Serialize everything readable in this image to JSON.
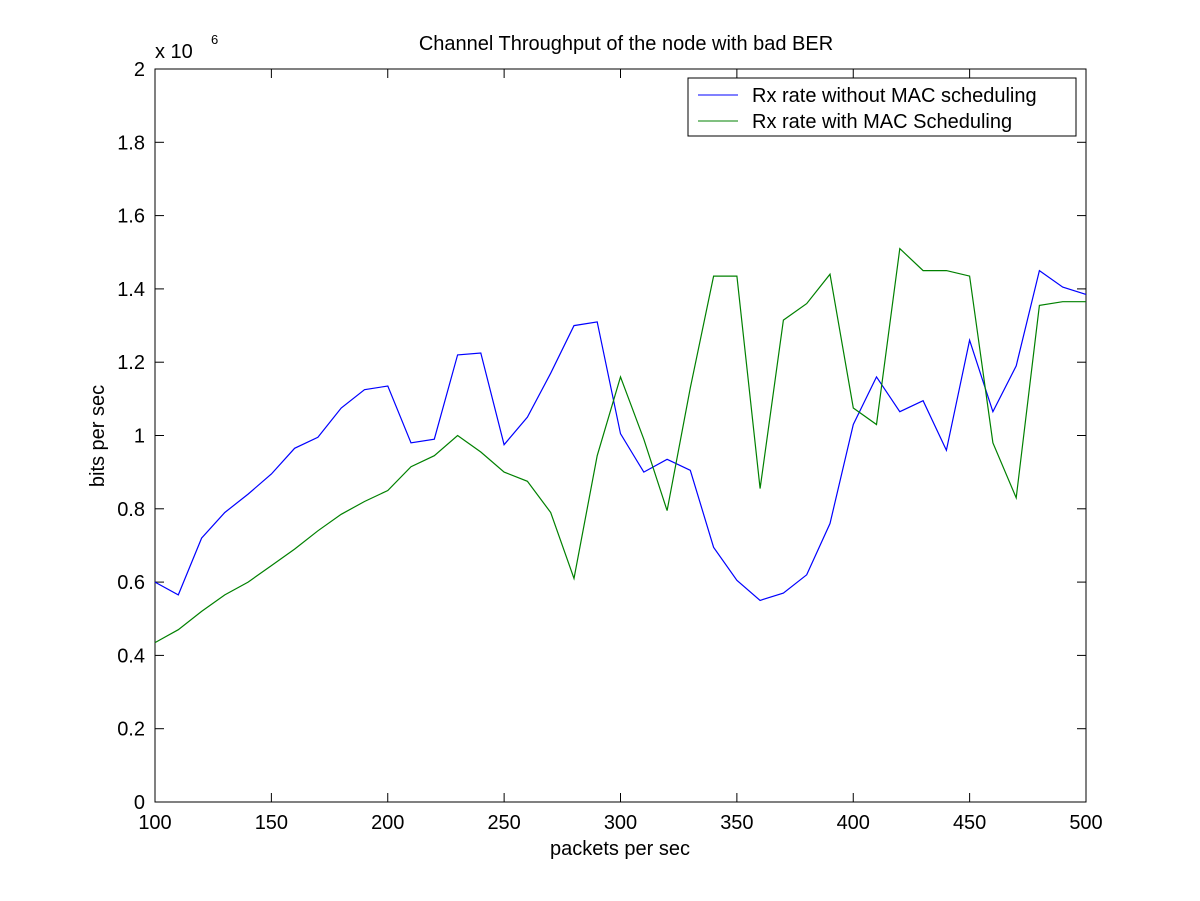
{
  "chart_data": {
    "type": "line",
    "title": "Channel Throughput of the node with bad BER",
    "xlabel": "packets per sec",
    "ylabel": "bits per sec",
    "y_multiplier": {
      "base": "x 10",
      "exponent": "6"
    },
    "xlim": [
      100,
      500
    ],
    "ylim": [
      0,
      2
    ],
    "xticks": [
      100,
      150,
      200,
      250,
      300,
      350,
      400,
      450,
      500
    ],
    "xtick_labels": [
      "100",
      "150",
      "200",
      "250",
      "300",
      "350",
      "400",
      "450",
      "500"
    ],
    "yticks": [
      0,
      0.2,
      0.4,
      0.6,
      0.8,
      1,
      1.2,
      1.4,
      1.6,
      1.8,
      2
    ],
    "ytick_labels": [
      "0",
      "0.2",
      "0.4",
      "0.6",
      "0.8",
      "1",
      "1.2",
      "1.4",
      "1.6",
      "1.8",
      "2"
    ],
    "grid": false,
    "legend_position": "top-right",
    "x": [
      100,
      110,
      120,
      130,
      140,
      150,
      160,
      170,
      180,
      190,
      200,
      210,
      220,
      230,
      240,
      250,
      260,
      270,
      280,
      290,
      300,
      310,
      320,
      330,
      340,
      350,
      360,
      370,
      380,
      390,
      400,
      410,
      420,
      430,
      440,
      450,
      460,
      470,
      480,
      490,
      500
    ],
    "series": [
      {
        "name": "Rx rate without MAC scheduling",
        "color": "#0000ff",
        "values": [
          0.6,
          0.565,
          0.72,
          0.79,
          0.84,
          0.895,
          0.965,
          0.995,
          1.075,
          1.125,
          1.135,
          0.98,
          0.99,
          1.22,
          1.225,
          0.975,
          1.05,
          1.17,
          1.3,
          1.31,
          1.005,
          0.9,
          0.935,
          0.905,
          0.695,
          0.605,
          0.55,
          0.57,
          0.62,
          0.76,
          1.03,
          1.16,
          1.065,
          1.095,
          0.96,
          1.26,
          1.065,
          1.19,
          1.45,
          1.405,
          1.385
        ]
      },
      {
        "name": "Rx rate with MAC Scheduling",
        "color": "#008000",
        "values": [
          0.435,
          0.47,
          0.52,
          0.565,
          0.6,
          0.645,
          0.69,
          0.74,
          0.785,
          0.82,
          0.85,
          0.915,
          0.945,
          1.0,
          0.955,
          0.9,
          0.875,
          0.79,
          0.61,
          0.945,
          1.16,
          0.99,
          0.795,
          1.13,
          1.435,
          1.435,
          0.855,
          1.315,
          1.36,
          1.44,
          1.075,
          1.03,
          1.51,
          1.45,
          1.45,
          1.435,
          0.98,
          0.83,
          1.355,
          1.365,
          1.365
        ]
      }
    ]
  }
}
